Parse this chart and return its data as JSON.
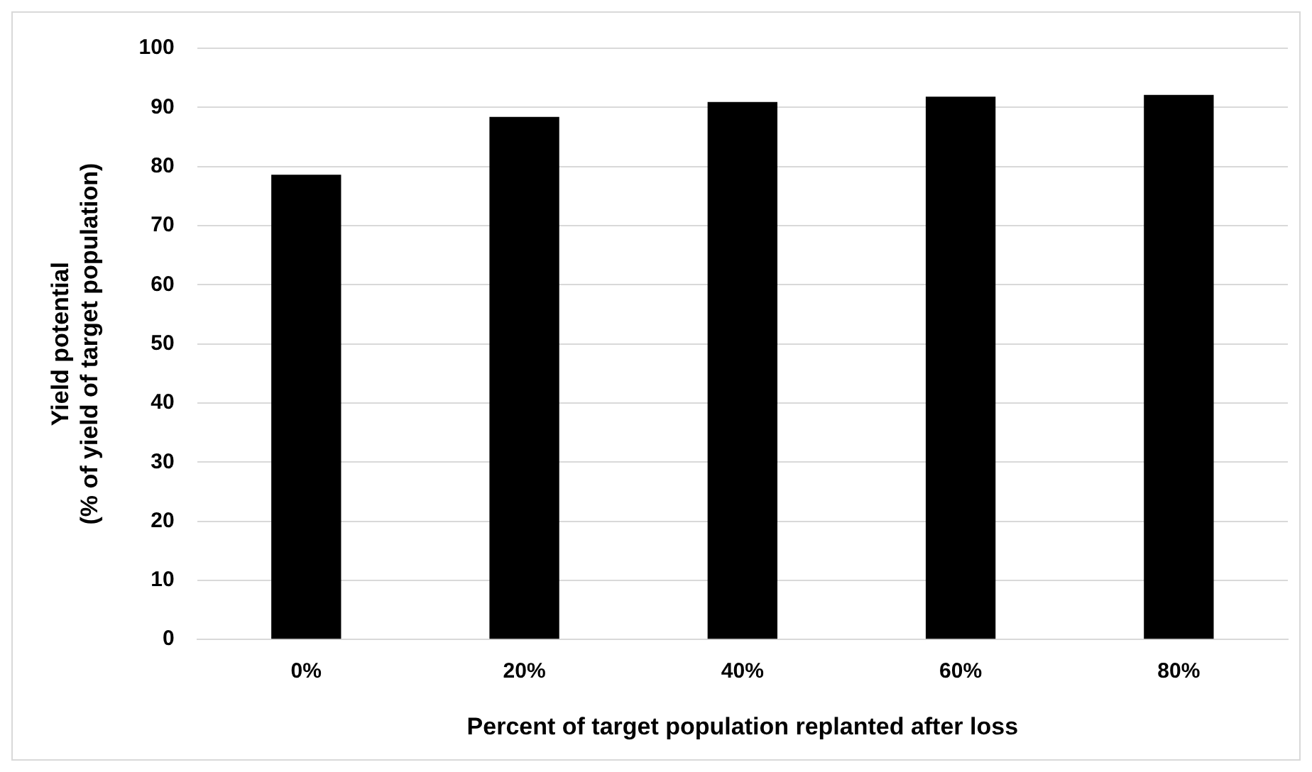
{
  "chart_data": {
    "type": "bar",
    "xlabel": "Percent of target population replanted after loss",
    "ylabel": "Yield potential\n(% of yield of target population)",
    "categories": [
      "0%",
      "20%",
      "40%",
      "60%",
      "80%"
    ],
    "values": [
      78.6,
      88.4,
      90.9,
      91.8,
      92.1
    ],
    "color": "#000000",
    "ylim": [
      0,
      100
    ],
    "yticks": [
      0,
      10,
      20,
      30,
      40,
      50,
      60,
      70,
      80,
      90,
      100
    ],
    "grid": "y",
    "legend": false
  }
}
